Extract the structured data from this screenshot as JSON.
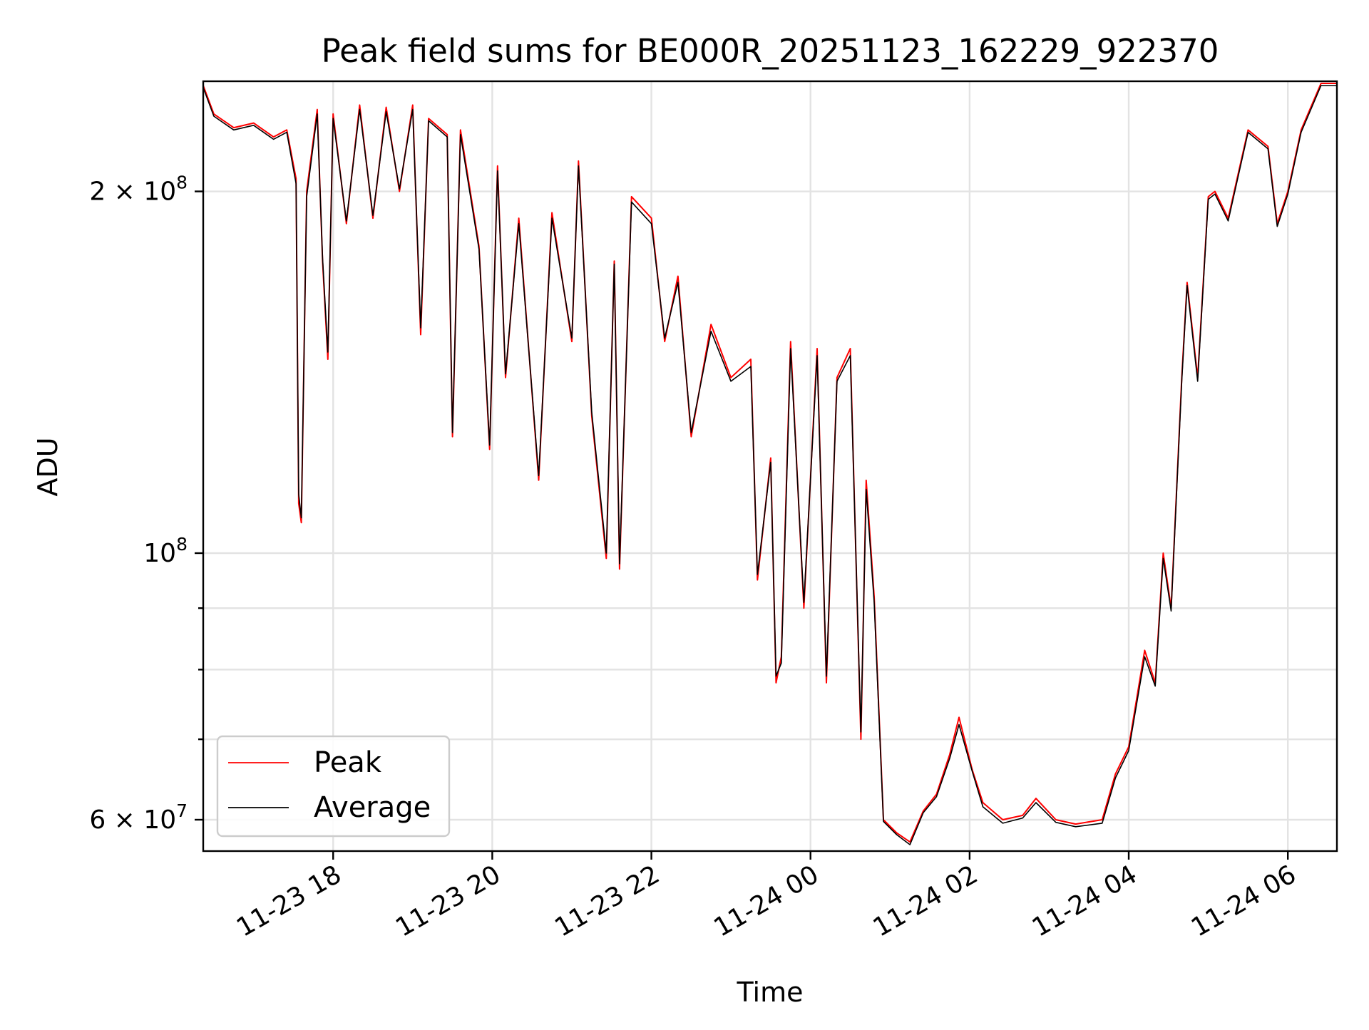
{
  "chart_data": {
    "type": "line",
    "title": "Peak field sums for BE000R_20251123_162229_922370",
    "xlabel": "Time",
    "ylabel": "ADU",
    "x_axis": {
      "type": "datetime",
      "range": [
        "2025-11-23 16:22",
        "2025-11-24 06:37"
      ],
      "ticks": [
        {
          "value": "2025-11-23 18:00",
          "label": "11-23 18"
        },
        {
          "value": "2025-11-23 20:00",
          "label": "11-23 20"
        },
        {
          "value": "2025-11-23 22:00",
          "label": "11-23 22"
        },
        {
          "value": "2025-11-24 00:00",
          "label": "11-24 00"
        },
        {
          "value": "2025-11-24 02:00",
          "label": "11-24 02"
        },
        {
          "value": "2025-11-24 04:00",
          "label": "11-24 04"
        },
        {
          "value": "2025-11-24 06:00",
          "label": "11-24 06"
        }
      ]
    },
    "y_axis": {
      "scale": "log",
      "range": [
        56500000,
        247000000
      ],
      "major_ticks": [
        {
          "value": 60000000,
          "base": "6 × 10",
          "exp": "7"
        },
        {
          "value": 100000000,
          "base": "10",
          "exp": "8"
        },
        {
          "value": 200000000,
          "base": "2 × 10",
          "exp": "8"
        }
      ],
      "minor_gridlines": [
        70000000,
        80000000,
        90000000
      ]
    },
    "grid": true,
    "legend_position": "lower-left",
    "series": [
      {
        "name": "Peak",
        "color": "#ff0000",
        "points": [
          [
            "2025-11-23 16:22",
            245000000
          ],
          [
            "2025-11-23 16:30",
            232000000
          ],
          [
            "2025-11-23 16:45",
            226000000
          ],
          [
            "2025-11-23 17:00",
            228000000
          ],
          [
            "2025-11-23 17:15",
            222000000
          ],
          [
            "2025-11-23 17:25",
            225000000
          ],
          [
            "2025-11-23 17:32",
            205000000
          ],
          [
            "2025-11-23 17:34",
            110000000
          ],
          [
            "2025-11-23 17:36",
            106000000
          ],
          [
            "2025-11-23 17:40",
            200000000
          ],
          [
            "2025-11-23 17:48",
            234000000
          ],
          [
            "2025-11-23 17:52",
            175000000
          ],
          [
            "2025-11-23 17:56",
            145000000
          ],
          [
            "2025-11-23 18:00",
            232000000
          ],
          [
            "2025-11-23 18:10",
            188000000
          ],
          [
            "2025-11-23 18:20",
            236000000
          ],
          [
            "2025-11-23 18:30",
            190000000
          ],
          [
            "2025-11-23 18:40",
            235000000
          ],
          [
            "2025-11-23 18:50",
            200000000
          ],
          [
            "2025-11-23 19:00",
            236000000
          ],
          [
            "2025-11-23 19:06",
            152000000
          ],
          [
            "2025-11-23 19:12",
            230000000
          ],
          [
            "2025-11-23 19:26",
            223000000
          ],
          [
            "2025-11-23 19:30",
            125000000
          ],
          [
            "2025-11-23 19:36",
            225000000
          ],
          [
            "2025-11-23 19:50",
            180000000
          ],
          [
            "2025-11-23 19:58",
            122000000
          ],
          [
            "2025-11-23 20:04",
            210000000
          ],
          [
            "2025-11-23 20:10",
            140000000
          ],
          [
            "2025-11-23 20:20",
            190000000
          ],
          [
            "2025-11-23 20:35",
            115000000
          ],
          [
            "2025-11-23 20:45",
            192000000
          ],
          [
            "2025-11-23 21:00",
            150000000
          ],
          [
            "2025-11-23 21:05",
            212000000
          ],
          [
            "2025-11-23 21:15",
            130000000
          ],
          [
            "2025-11-23 21:26",
            99000000
          ],
          [
            "2025-11-23 21:32",
            175000000
          ],
          [
            "2025-11-23 21:36",
            97000000
          ],
          [
            "2025-11-23 21:45",
            198000000
          ],
          [
            "2025-11-23 22:00",
            190000000
          ],
          [
            "2025-11-23 22:10",
            150000000
          ],
          [
            "2025-11-23 22:20",
            170000000
          ],
          [
            "2025-11-23 22:30",
            125000000
          ],
          [
            "2025-11-23 22:45",
            155000000
          ],
          [
            "2025-11-23 23:00",
            140000000
          ],
          [
            "2025-11-23 23:15",
            145000000
          ],
          [
            "2025-11-23 23:20",
            95000000
          ],
          [
            "2025-11-23 23:30",
            120000000
          ],
          [
            "2025-11-23 23:34",
            78000000
          ],
          [
            "2025-11-23 23:38",
            82000000
          ],
          [
            "2025-11-23 23:45",
            150000000
          ],
          [
            "2025-11-23 23:55",
            90000000
          ],
          [
            "2025-11-24 00:05",
            148000000
          ],
          [
            "2025-11-24 00:12",
            78000000
          ],
          [
            "2025-11-24 00:20",
            140000000
          ],
          [
            "2025-11-24 00:30",
            148000000
          ],
          [
            "2025-11-24 00:38",
            70000000
          ],
          [
            "2025-11-24 00:42",
            115000000
          ],
          [
            "2025-11-24 00:48",
            92000000
          ],
          [
            "2025-11-24 00:55",
            60000000
          ],
          [
            "2025-11-24 01:05",
            58500000
          ],
          [
            "2025-11-24 01:15",
            57500000
          ],
          [
            "2025-11-24 01:25",
            61000000
          ],
          [
            "2025-11-24 01:35",
            63000000
          ],
          [
            "2025-11-24 01:45",
            68000000
          ],
          [
            "2025-11-24 01:52",
            73000000
          ],
          [
            "2025-11-24 02:02",
            66000000
          ],
          [
            "2025-11-24 02:10",
            62000000
          ],
          [
            "2025-11-24 02:25",
            60000000
          ],
          [
            "2025-11-24 02:40",
            60500000
          ],
          [
            "2025-11-24 02:50",
            62500000
          ],
          [
            "2025-11-24 03:05",
            60000000
          ],
          [
            "2025-11-24 03:20",
            59500000
          ],
          [
            "2025-11-24 03:40",
            60000000
          ],
          [
            "2025-11-24 03:50",
            65500000
          ],
          [
            "2025-11-24 04:00",
            69000000
          ],
          [
            "2025-11-24 04:12",
            83000000
          ],
          [
            "2025-11-24 04:20",
            78000000
          ],
          [
            "2025-11-24 04:26",
            100000000
          ],
          [
            "2025-11-24 04:32",
            90000000
          ],
          [
            "2025-11-24 04:40",
            140000000
          ],
          [
            "2025-11-24 04:44",
            168000000
          ],
          [
            "2025-11-24 04:52",
            140000000
          ],
          [
            "2025-11-24 05:00",
            198000000
          ],
          [
            "2025-11-24 05:05",
            200000000
          ],
          [
            "2025-11-24 05:15",
            190000000
          ],
          [
            "2025-11-24 05:30",
            225000000
          ],
          [
            "2025-11-24 05:45",
            218000000
          ],
          [
            "2025-11-24 05:52",
            188000000
          ],
          [
            "2025-11-24 06:00",
            200000000
          ],
          [
            "2025-11-24 06:10",
            225000000
          ],
          [
            "2025-11-24 06:25",
            246000000
          ],
          [
            "2025-11-24 06:37",
            246000000
          ]
        ]
      },
      {
        "name": "Average",
        "color": "#000000",
        "points": [
          [
            "2025-11-23 16:22",
            244000000
          ],
          [
            "2025-11-23 16:30",
            231000000
          ],
          [
            "2025-11-23 16:45",
            225000000
          ],
          [
            "2025-11-23 17:00",
            227000000
          ],
          [
            "2025-11-23 17:15",
            221000000
          ],
          [
            "2025-11-23 17:25",
            224000000
          ],
          [
            "2025-11-23 17:32",
            203000000
          ],
          [
            "2025-11-23 17:34",
            112000000
          ],
          [
            "2025-11-23 17:36",
            107000000
          ],
          [
            "2025-11-23 17:40",
            198000000
          ],
          [
            "2025-11-23 17:48",
            232000000
          ],
          [
            "2025-11-23 17:52",
            176000000
          ],
          [
            "2025-11-23 17:56",
            147000000
          ],
          [
            "2025-11-23 18:00",
            230000000
          ],
          [
            "2025-11-23 18:10",
            189000000
          ],
          [
            "2025-11-23 18:20",
            234000000
          ],
          [
            "2025-11-23 18:30",
            191000000
          ],
          [
            "2025-11-23 18:40",
            233000000
          ],
          [
            "2025-11-23 18:50",
            201000000
          ],
          [
            "2025-11-23 19:00",
            234000000
          ],
          [
            "2025-11-23 19:06",
            154000000
          ],
          [
            "2025-11-23 19:12",
            229000000
          ],
          [
            "2025-11-23 19:26",
            222000000
          ],
          [
            "2025-11-23 19:30",
            126000000
          ],
          [
            "2025-11-23 19:36",
            223000000
          ],
          [
            "2025-11-23 19:50",
            179000000
          ],
          [
            "2025-11-23 19:58",
            123000000
          ],
          [
            "2025-11-23 20:04",
            208000000
          ],
          [
            "2025-11-23 20:10",
            141000000
          ],
          [
            "2025-11-23 20:20",
            188000000
          ],
          [
            "2025-11-23 20:35",
            116000000
          ],
          [
            "2025-11-23 20:45",
            190000000
          ],
          [
            "2025-11-23 21:00",
            151000000
          ],
          [
            "2025-11-23 21:05",
            210000000
          ],
          [
            "2025-11-23 21:15",
            131000000
          ],
          [
            "2025-11-23 21:26",
            100000000
          ],
          [
            "2025-11-23 21:32",
            174000000
          ],
          [
            "2025-11-23 21:36",
            98000000
          ],
          [
            "2025-11-23 21:45",
            196000000
          ],
          [
            "2025-11-23 22:00",
            188000000
          ],
          [
            "2025-11-23 22:10",
            151000000
          ],
          [
            "2025-11-23 22:20",
            168000000
          ],
          [
            "2025-11-23 22:30",
            126000000
          ],
          [
            "2025-11-23 22:45",
            153000000
          ],
          [
            "2025-11-23 23:00",
            139000000
          ],
          [
            "2025-11-23 23:15",
            143000000
          ],
          [
            "2025-11-23 23:20",
            96000000
          ],
          [
            "2025-11-23 23:30",
            119000000
          ],
          [
            "2025-11-23 23:34",
            79000000
          ],
          [
            "2025-11-23 23:38",
            81000000
          ],
          [
            "2025-11-23 23:45",
            148000000
          ],
          [
            "2025-11-23 23:55",
            91000000
          ],
          [
            "2025-11-24 00:05",
            146000000
          ],
          [
            "2025-11-24 00:12",
            79000000
          ],
          [
            "2025-11-24 00:20",
            139000000
          ],
          [
            "2025-11-24 00:30",
            146000000
          ],
          [
            "2025-11-24 00:38",
            71000000
          ],
          [
            "2025-11-24 00:42",
            113000000
          ],
          [
            "2025-11-24 00:48",
            91000000
          ],
          [
            "2025-11-24 00:55",
            59800000
          ],
          [
            "2025-11-24 01:05",
            58300000
          ],
          [
            "2025-11-24 01:15",
            57200000
          ],
          [
            "2025-11-24 01:25",
            60800000
          ],
          [
            "2025-11-24 01:35",
            62700000
          ],
          [
            "2025-11-24 01:45",
            67500000
          ],
          [
            "2025-11-24 01:52",
            72000000
          ],
          [
            "2025-11-24 02:02",
            65800000
          ],
          [
            "2025-11-24 02:10",
            61500000
          ],
          [
            "2025-11-24 02:25",
            59600000
          ],
          [
            "2025-11-24 02:40",
            60200000
          ],
          [
            "2025-11-24 02:50",
            62000000
          ],
          [
            "2025-11-24 03:05",
            59700000
          ],
          [
            "2025-11-24 03:20",
            59200000
          ],
          [
            "2025-11-24 03:40",
            59600000
          ],
          [
            "2025-11-24 03:50",
            65000000
          ],
          [
            "2025-11-24 04:00",
            68500000
          ],
          [
            "2025-11-24 04:12",
            82000000
          ],
          [
            "2025-11-24 04:20",
            77500000
          ],
          [
            "2025-11-24 04:26",
            99000000
          ],
          [
            "2025-11-24 04:32",
            89500000
          ],
          [
            "2025-11-24 04:40",
            139000000
          ],
          [
            "2025-11-24 04:44",
            167000000
          ],
          [
            "2025-11-24 04:52",
            139000000
          ],
          [
            "2025-11-24 05:00",
            197000000
          ],
          [
            "2025-11-24 05:05",
            199000000
          ],
          [
            "2025-11-24 05:15",
            189000000
          ],
          [
            "2025-11-24 05:30",
            224000000
          ],
          [
            "2025-11-24 05:45",
            217000000
          ],
          [
            "2025-11-24 05:52",
            187000000
          ],
          [
            "2025-11-24 06:00",
            199000000
          ],
          [
            "2025-11-24 06:10",
            224000000
          ],
          [
            "2025-11-24 06:25",
            245000000
          ],
          [
            "2025-11-24 06:37",
            245000000
          ]
        ]
      }
    ]
  }
}
